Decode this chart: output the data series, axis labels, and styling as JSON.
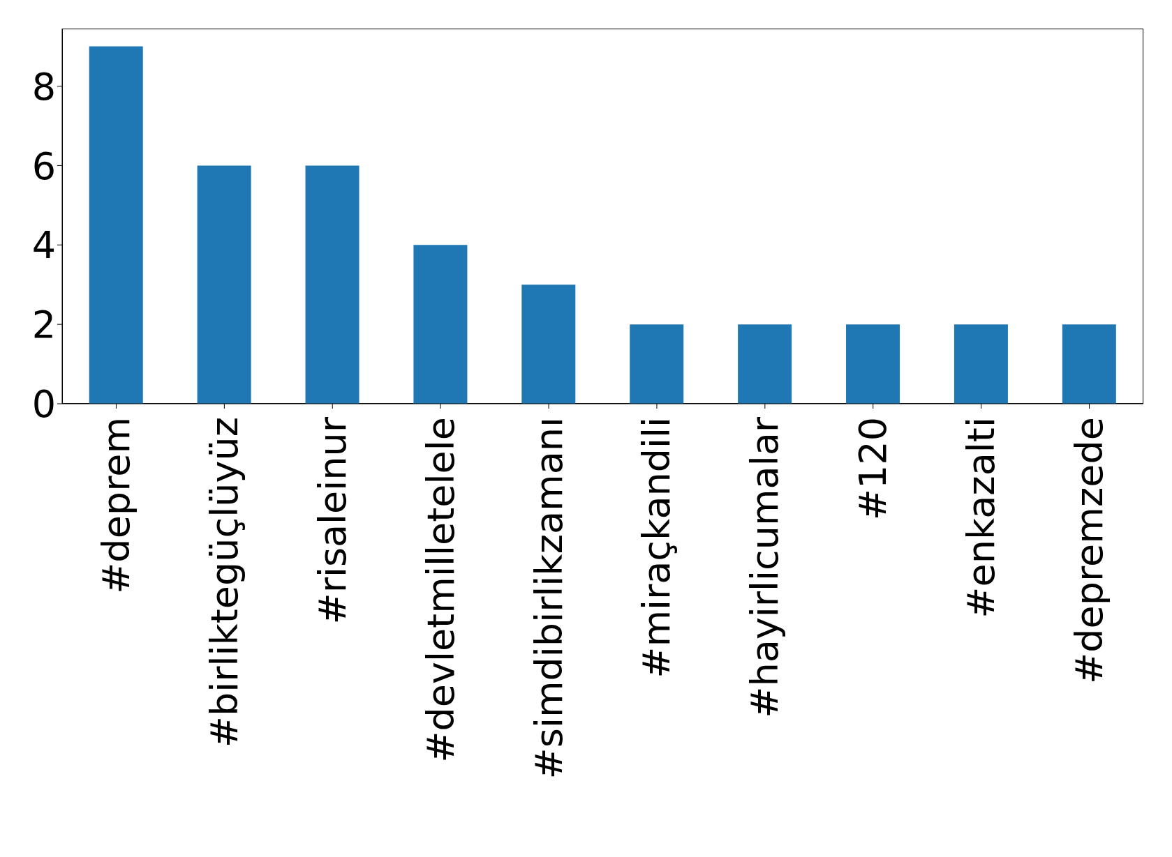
{
  "chart_data": {
    "type": "bar",
    "categories": [
      "#deprem",
      "#birliktegüçlüyüz",
      "#risaleinur",
      "#devletmilletelele",
      "#simdibirlikzamanı",
      "#miraçkandili",
      "#hayirlicumalar",
      "#120",
      "#enkazalti",
      "#depremzede"
    ],
    "values": [
      9,
      6,
      6,
      4,
      3,
      2,
      2,
      2,
      2,
      2
    ],
    "color": "#1f77b4",
    "ylim": [
      0,
      9.45
    ],
    "yticks": [
      0,
      2,
      4,
      6,
      8
    ],
    "grid": false
  }
}
